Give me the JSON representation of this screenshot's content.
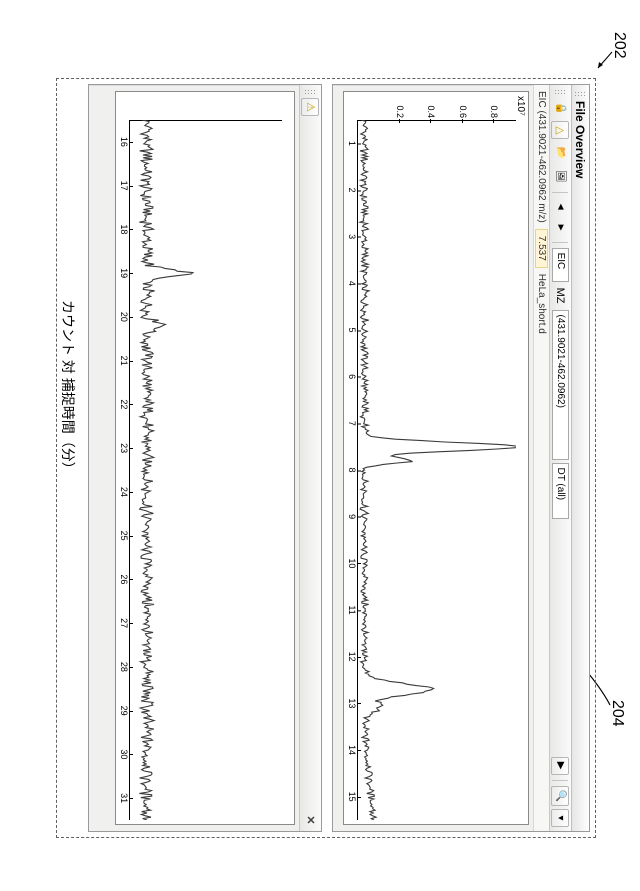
{
  "refs": {
    "r202": "202",
    "r204": "204"
  },
  "axis_title": "カウント 対 捕捉時間（分）",
  "win1": {
    "title": "File Overview",
    "toolbar": {
      "eic": "EIC",
      "mz_label": "MZ",
      "mz_range": "(431.9021-462.0962)",
      "dt": "DT (all)",
      "play": "▶"
    },
    "sub": {
      "desc": "EIC (431.9021-462.0962 m/z)",
      "rt": "7.537",
      "file": "HeLa_short.d"
    },
    "plot": {
      "ymult": "x10⁷",
      "ylim": [
        0,
        1.0
      ],
      "yticks": [
        0.2,
        0.4,
        0.6,
        0.8
      ],
      "xlim": [
        0.5,
        15.5
      ],
      "xticks": [
        1,
        2,
        3,
        4,
        5,
        6,
        7,
        8,
        9,
        10,
        11,
        12,
        13,
        14,
        15
      ],
      "baseline": 0.04,
      "noise": 0.02,
      "peaks": [
        {
          "x": 7.5,
          "h": 0.98,
          "w": 0.18
        },
        {
          "x": 7.8,
          "h": 0.3,
          "w": 0.12
        },
        {
          "x": 12.7,
          "h": 0.42,
          "w": 0.25
        },
        {
          "x": 13.1,
          "h": 0.1,
          "w": 0.2
        }
      ],
      "rise_after": 13.5,
      "stroke": "#3a3a3a",
      "stroke_width": 1.1
    }
  },
  "win2": {
    "toolbar": {
      "warn": "⚠"
    },
    "plot": {
      "ylim": [
        0,
        1.0
      ],
      "xlim": [
        15.5,
        31.5
      ],
      "xticks": [
        16,
        17,
        18,
        19,
        20,
        21,
        22,
        23,
        24,
        25,
        26,
        27,
        28,
        29,
        30,
        31
      ],
      "baseline": 0.11,
      "noise": 0.035,
      "peaks": [
        {
          "x": 19.0,
          "h": 0.28,
          "w": 0.15
        },
        {
          "x": 20.2,
          "h": 0.12,
          "w": 0.15
        }
      ],
      "stroke": "#3a3a3a",
      "stroke_width": 1.1
    }
  }
}
